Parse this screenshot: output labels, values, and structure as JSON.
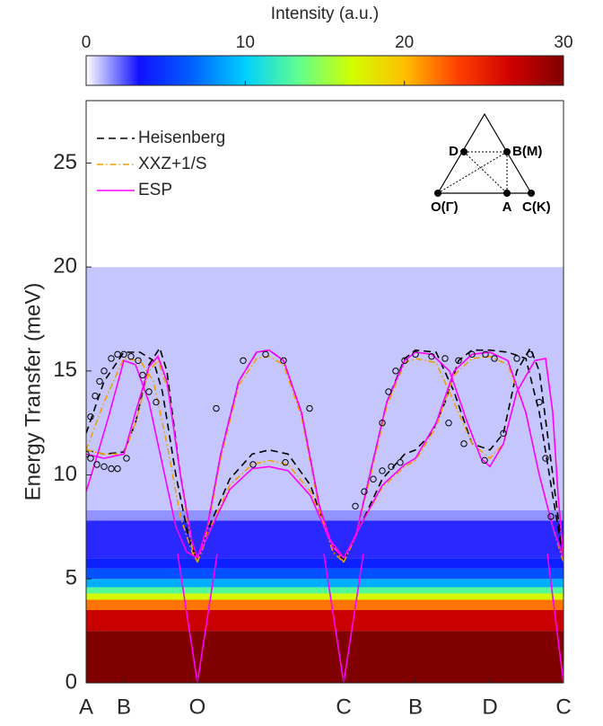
{
  "chart_data": {
    "type": "line",
    "colorbar_label": "Intensity (a.u.)",
    "clim": [
      0,
      30
    ],
    "cticks": [
      0,
      10,
      20,
      30
    ],
    "colormap": [
      "#ffffff",
      "#1010ff",
      "#0060ff",
      "#00d0ff",
      "#60ff90",
      "#d0ff00",
      "#ffc000",
      "#ff4000",
      "#d00000",
      "#800000"
    ],
    "y_label": "Energy Transfer (meV)",
    "xlim": [
      0,
      532
    ],
    "xticks": [
      {
        "value": 0,
        "label": "A"
      },
      {
        "value": 42,
        "label": "B"
      },
      {
        "value": 124,
        "label": "O"
      },
      {
        "value": 287,
        "label": "C"
      },
      {
        "value": 367,
        "label": "B"
      },
      {
        "value": 450,
        "label": "D"
      },
      {
        "value": 532,
        "label": "C"
      }
    ],
    "ylim": [
      0,
      28
    ],
    "yticks": [
      0,
      5,
      10,
      15,
      20,
      25
    ],
    "legend": "upper left",
    "heatmap": {
      "energy_edges": [
        0,
        2.5,
        3.5,
        4,
        4.3,
        4.6,
        5,
        5.5,
        6,
        7.8,
        8.3,
        20,
        28
      ],
      "intensity": [
        30,
        27,
        22,
        17,
        13,
        9,
        6,
        4,
        3,
        1.5,
        0.8,
        0
      ]
    },
    "series": [
      {
        "name": "Heisenberg",
        "color": "#000000",
        "dash": "dashed",
        "x": [
          0,
          20,
          42,
          60,
          75,
          85,
          100,
          115,
          124,
          null,
          0,
          20,
          42,
          55,
          70,
          82,
          90,
          105,
          118,
          124,
          null,
          124,
          135,
          150,
          170,
          190,
          204,
          220,
          240,
          260,
          275,
          287,
          null,
          124,
          140,
          160,
          185,
          204,
          225,
          250,
          270,
          287,
          null,
          287,
          300,
          315,
          335,
          355,
          367,
          390,
          410,
          430,
          450,
          465,
          480,
          495,
          505,
          520,
          532,
          null,
          287,
          305,
          330,
          355,
          367,
          385,
          400,
          415,
          430,
          450,
          470,
          490,
          505,
          520,
          532
        ],
        "values": [
          12,
          14.5,
          15.9,
          15.9,
          15.5,
          14,
          10,
          6.8,
          5.9,
          null,
          11.2,
          11.0,
          11.1,
          12.5,
          15.3,
          16.1,
          15,
          10,
          6.8,
          5.9,
          null,
          5.9,
          7.5,
          11,
          14.5,
          15.9,
          16,
          15.5,
          13,
          8.5,
          6.5,
          5.9,
          null,
          5.9,
          7.8,
          9.8,
          11,
          11.2,
          11,
          9.5,
          7,
          5.9,
          null,
          5.9,
          7,
          9.8,
          13.5,
          15.6,
          16,
          15.9,
          14,
          11.5,
          11.2,
          12,
          15,
          16.1,
          15,
          10,
          5.9,
          null,
          5.9,
          7.5,
          9.8,
          11,
          11.2,
          12,
          13.5,
          15.5,
          16,
          16,
          15.9,
          15.6,
          13,
          9,
          5.9
        ]
      },
      {
        "name": "XXZ+1/S",
        "color": "#f0a000",
        "dash": "dashdot",
        "x": [
          0,
          20,
          42,
          60,
          75,
          90,
          105,
          118,
          124,
          null,
          0,
          20,
          42,
          55,
          70,
          80,
          92,
          105,
          118,
          124,
          null,
          124,
          135,
          150,
          170,
          190,
          204,
          220,
          240,
          260,
          275,
          287,
          null,
          124,
          140,
          160,
          185,
          204,
          225,
          250,
          270,
          287,
          null,
          287,
          300,
          315,
          335,
          355,
          367,
          390,
          410,
          430,
          450,
          465,
          480,
          500,
          512,
          520,
          526,
          532,
          null,
          287,
          305,
          330,
          355,
          367,
          390,
          410,
          430,
          450,
          470,
          490,
          505,
          520,
          532
        ],
        "values": [
          11.2,
          13.5,
          15.6,
          15.5,
          14.5,
          11.5,
          8,
          6.3,
          5.8,
          null,
          11.2,
          11,
          11,
          12.5,
          15,
          15.5,
          14,
          10,
          6.5,
          5.8,
          null,
          5.8,
          7.3,
          10.8,
          14.3,
          15.6,
          15.7,
          15.3,
          12.8,
          8.3,
          6.3,
          5.8,
          null,
          5.8,
          7.6,
          9.5,
          10.5,
          10.7,
          10.5,
          9.2,
          7,
          5.8,
          null,
          5.8,
          7,
          9.6,
          13.3,
          15.4,
          15.6,
          15.4,
          13.5,
          11.5,
          10.8,
          11.5,
          14,
          15.5,
          15.6,
          13,
          9,
          5.8,
          null,
          5.8,
          7.5,
          9.4,
          10.4,
          10.7,
          12.3,
          14.8,
          15.6,
          15.7,
          15.3,
          13,
          10,
          7.5,
          5.8
        ]
      },
      {
        "name": "ESP",
        "color": "#ff00ff",
        "dash": "solid",
        "x": [
          0,
          10,
          25,
          42,
          55,
          70,
          85,
          100,
          112,
          124,
          null,
          0,
          20,
          42,
          55,
          70,
          80,
          90,
          105,
          118,
          124,
          null,
          124,
          135,
          150,
          170,
          190,
          204,
          220,
          240,
          260,
          275,
          287,
          null,
          124,
          140,
          160,
          185,
          204,
          225,
          250,
          270,
          287,
          null,
          102,
          124,
          146,
          null,
          265,
          287,
          309,
          null,
          514,
          532,
          null,
          287,
          300,
          315,
          335,
          355,
          367,
          385,
          405,
          425,
          440,
          450,
          465,
          480,
          500,
          512,
          520,
          526,
          532,
          null,
          287,
          305,
          330,
          355,
          367,
          390,
          410,
          430,
          450,
          470,
          490,
          505,
          520,
          532
        ],
        "values": [
          9.2,
          10.6,
          12.8,
          15.5,
          15.3,
          13.5,
          10.5,
          7.5,
          6.3,
          6.0,
          null,
          11.0,
          10.8,
          11.0,
          13,
          15.2,
          15.7,
          14.5,
          10,
          6.8,
          6.0,
          null,
          6.0,
          7.5,
          11,
          14.5,
          15.9,
          16,
          15.5,
          13,
          8.5,
          6.5,
          6.0,
          null,
          6.0,
          7.5,
          9.3,
          10.3,
          10.4,
          10.2,
          9,
          7,
          6.0,
          null,
          6.2,
          0,
          6.2,
          null,
          6.2,
          0,
          6.2,
          null,
          6.2,
          0,
          null,
          6.0,
          7,
          9.8,
          13.5,
          15.5,
          15.9,
          15.8,
          15,
          12.5,
          10.8,
          10.4,
          11.5,
          14,
          15.5,
          15.6,
          13,
          9,
          6.0,
          null,
          6.0,
          7.5,
          9.5,
          10.5,
          10.8,
          12.5,
          15,
          15.8,
          15.9,
          15.5,
          13,
          10,
          7.5,
          6.0
        ]
      }
    ],
    "points": {
      "color": "#000000",
      "x": [
        0,
        5,
        10,
        15,
        20,
        28,
        35,
        42,
        50,
        58,
        63,
        70,
        78,
        5,
        12,
        20,
        28,
        35,
        45,
        145,
        175,
        200,
        220,
        249,
        186,
        222,
        300,
        310,
        320,
        330,
        340,
        350,
        330,
        337,
        345,
        355,
        367,
        385,
        400,
        415,
        430,
        445,
        455,
        404,
        421,
        444,
        465,
        480,
        495,
        505,
        512,
        518
      ],
      "y": [
        11,
        12.8,
        13.8,
        14.5,
        15,
        15.6,
        15.8,
        15.8,
        15.7,
        15.5,
        14.8,
        14,
        13.5,
        10.8,
        10.5,
        10.4,
        10.3,
        10.3,
        10.8,
        13.2,
        15.5,
        15.8,
        15.5,
        13.2,
        10.5,
        10.6,
        8.5,
        9.2,
        9.8,
        10.2,
        10.4,
        10.6,
        12.5,
        14,
        15,
        15.5,
        15.8,
        15.7,
        15.6,
        15.5,
        15.8,
        15.8,
        15.6,
        12.5,
        11.5,
        10.7,
        12,
        15.6,
        15.8,
        13.5,
        10.8,
        8
      ]
    },
    "inset": {
      "labels": [
        "O(Γ)",
        "A",
        "C(K)",
        "D",
        "B(M)"
      ]
    }
  }
}
